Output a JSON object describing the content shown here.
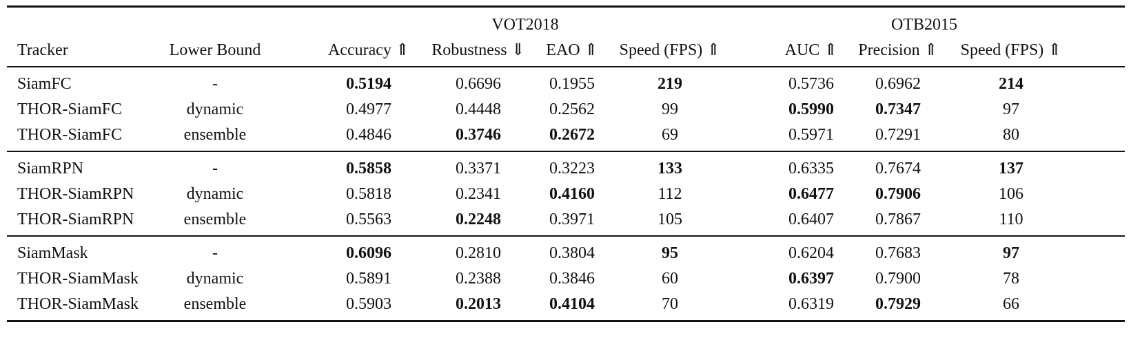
{
  "groups": {
    "vot": "VOT2018",
    "otb": "OTB2015"
  },
  "header": {
    "tracker": "Tracker",
    "lower_bound": "Lower Bound",
    "accuracy": "Accuracy ⇑",
    "robustness": "Robustness ⇓",
    "eao": "EAO ⇑",
    "speed_vot": "Speed (FPS) ⇑",
    "auc": "AUC ⇑",
    "precision": "Precision ⇑",
    "speed_otb": "Speed (FPS) ⇑"
  },
  "rows": [
    {
      "tracker": "SiamFC",
      "lower_bound": "-",
      "accuracy": "0.5194",
      "robustness": "0.6696",
      "eao": "0.1955",
      "speed_vot": "219",
      "auc": "0.5736",
      "precision": "0.6962",
      "speed_otb": "214",
      "bold": [
        "accuracy",
        "speed_vot",
        "speed_otb"
      ]
    },
    {
      "tracker": "THOR-SiamFC",
      "lower_bound": "dynamic",
      "accuracy": "0.4977",
      "robustness": "0.4448",
      "eao": "0.2562",
      "speed_vot": "99",
      "auc": "0.5990",
      "precision": "0.7347",
      "speed_otb": "97",
      "bold": [
        "auc",
        "precision"
      ]
    },
    {
      "tracker": "THOR-SiamFC",
      "lower_bound": "ensemble",
      "accuracy": "0.4846",
      "robustness": "0.3746",
      "eao": "0.2672",
      "speed_vot": "69",
      "auc": "0.5971",
      "precision": "0.7291",
      "speed_otb": "80",
      "bold": [
        "robustness",
        "eao"
      ]
    },
    {
      "tracker": "SiamRPN",
      "lower_bound": "-",
      "accuracy": "0.5858",
      "robustness": "0.3371",
      "eao": "0.3223",
      "speed_vot": "133",
      "auc": "0.6335",
      "precision": "0.7674",
      "speed_otb": "137",
      "bold": [
        "accuracy",
        "speed_vot",
        "speed_otb"
      ]
    },
    {
      "tracker": "THOR-SiamRPN",
      "lower_bound": "dynamic",
      "accuracy": "0.5818",
      "robustness": "0.2341",
      "eao": "0.4160",
      "speed_vot": "112",
      "auc": "0.6477",
      "precision": "0.7906",
      "speed_otb": "106",
      "bold": [
        "eao",
        "auc",
        "precision"
      ]
    },
    {
      "tracker": "THOR-SiamRPN",
      "lower_bound": "ensemble",
      "accuracy": "0.5563",
      "robustness": "0.2248",
      "eao": "0.3971",
      "speed_vot": "105",
      "auc": "0.6407",
      "precision": "0.7867",
      "speed_otb": "110",
      "bold": [
        "robustness"
      ]
    },
    {
      "tracker": "SiamMask",
      "lower_bound": "-",
      "accuracy": "0.6096",
      "robustness": "0.2810",
      "eao": "0.3804",
      "speed_vot": "95",
      "auc": "0.6204",
      "precision": "0.7683",
      "speed_otb": "97",
      "bold": [
        "accuracy",
        "speed_vot",
        "speed_otb"
      ]
    },
    {
      "tracker": "THOR-SiamMask",
      "lower_bound": "dynamic",
      "accuracy": "0.5891",
      "robustness": "0.2388",
      "eao": "0.3846",
      "speed_vot": "60",
      "auc": "0.6397",
      "precision": "0.7900",
      "speed_otb": "78",
      "bold": [
        "auc"
      ]
    },
    {
      "tracker": "THOR-SiamMask",
      "lower_bound": "ensemble",
      "accuracy": "0.5903",
      "robustness": "0.2013",
      "eao": "0.4104",
      "speed_vot": "70",
      "auc": "0.6319",
      "precision": "0.7929",
      "speed_otb": "66",
      "bold": [
        "robustness",
        "eao",
        "precision"
      ]
    }
  ]
}
